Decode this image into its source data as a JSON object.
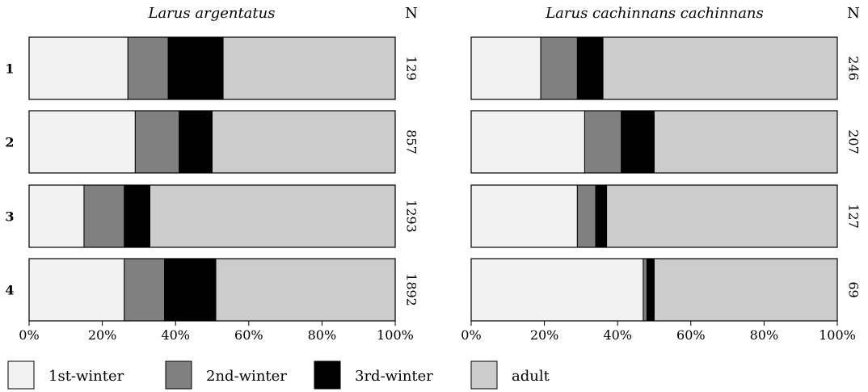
{
  "chart_data": {
    "type": "bar",
    "stacked": true,
    "orientation": "horizontal",
    "categories": [
      "1",
      "2",
      "3",
      "4"
    ],
    "n_label": "N",
    "xticks": [
      "0%",
      "20%",
      "40%",
      "60%",
      "80%",
      "100%"
    ],
    "xlim": [
      0,
      100
    ],
    "legend_position": "bottom",
    "colors": {
      "1st-winter": "#f2f2f2",
      "2nd-winter": "#808080",
      "3rd-winter": "#000000",
      "adult": "#cccccc"
    },
    "legend": [
      "1st-winter",
      "2nd-winter",
      "3rd-winter",
      "adult"
    ],
    "panels": [
      {
        "title": "Larus argentatus",
        "n": [
          "129",
          "857",
          "1293",
          "1892"
        ],
        "series": [
          {
            "name": "1st-winter",
            "values": [
              27,
              29,
              15,
              26
            ]
          },
          {
            "name": "2nd-winter",
            "values": [
              11,
              12,
              11,
              11
            ]
          },
          {
            "name": "3rd-winter",
            "values": [
              15,
              9,
              7,
              14
            ]
          },
          {
            "name": "adult",
            "values": [
              47,
              50,
              67,
              49
            ]
          }
        ]
      },
      {
        "title": "Larus cachinnans cachinnans",
        "n": [
          "246",
          "207",
          "127",
          "69"
        ],
        "series": [
          {
            "name": "1st-winter",
            "values": [
              19,
              31,
              29,
              47
            ]
          },
          {
            "name": "2nd-winter",
            "values": [
              10,
              10,
              5,
              1
            ]
          },
          {
            "name": "3rd-winter",
            "values": [
              7,
              9,
              3,
              2
            ]
          },
          {
            "name": "adult",
            "values": [
              64,
              50,
              63,
              50
            ]
          }
        ]
      }
    ]
  }
}
